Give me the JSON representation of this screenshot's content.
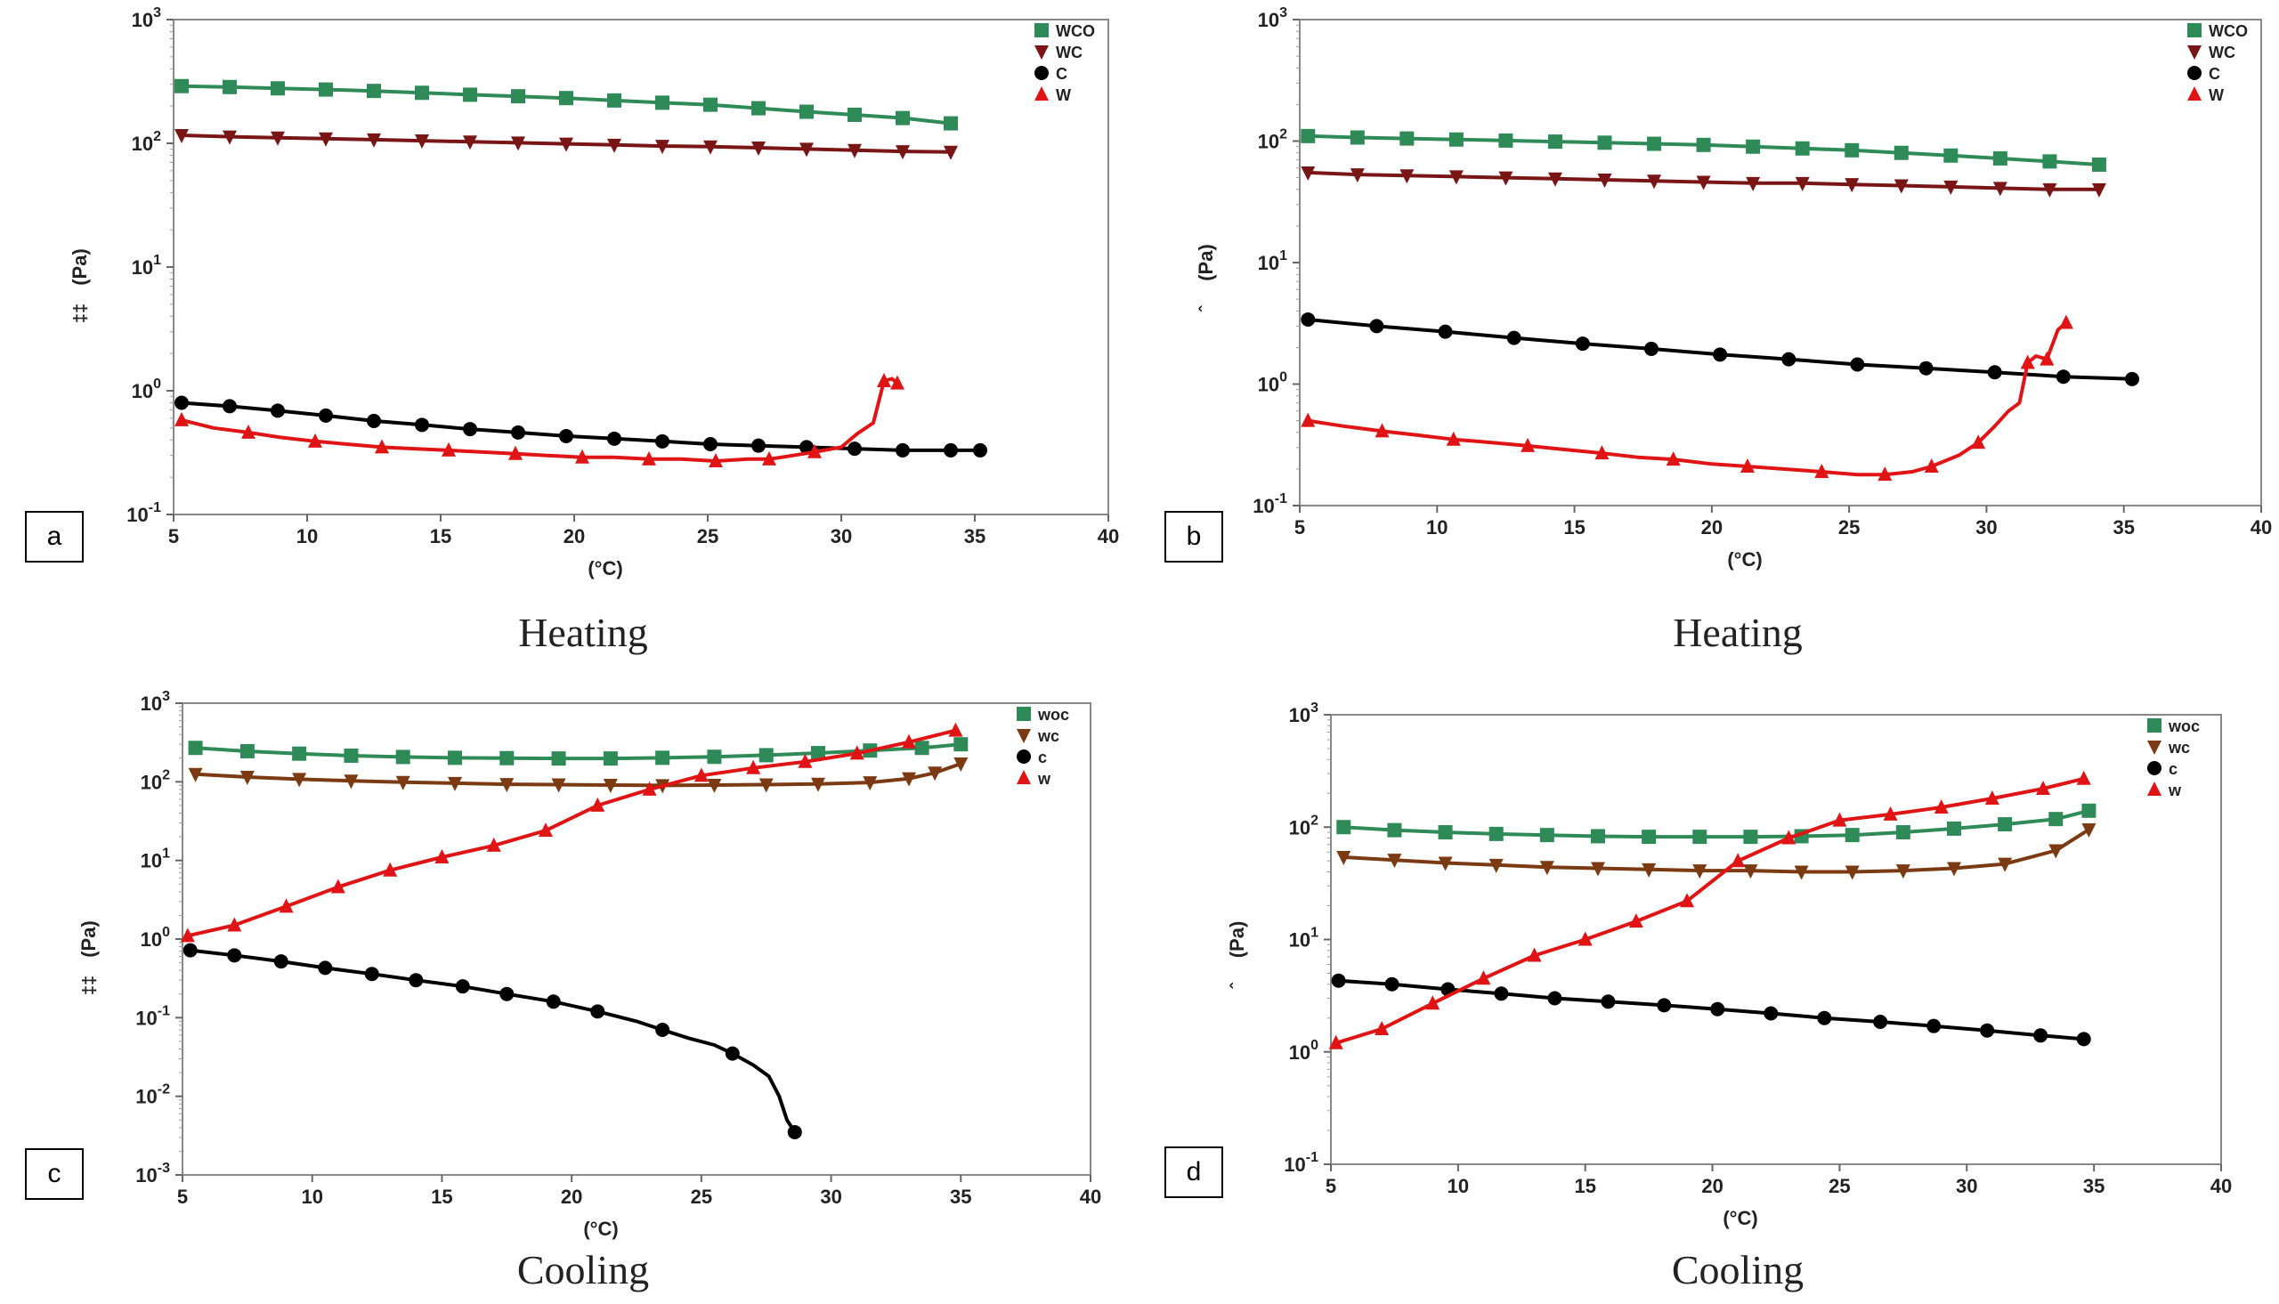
{
  "captions": [
    "Heating",
    "Heating",
    "Cooling",
    "Cooling"
  ],
  "colors": {
    "wco": "#2e8b57",
    "wc": "#7a1515",
    "wc_cool": "#7b3a12",
    "c": "#000000",
    "w": "#e01414"
  },
  "chart_data": [
    {
      "type": "line",
      "panel_label": "a",
      "title": "",
      "xlabel": "(°C)",
      "ylabel": "(Pa)",
      "ylabel_prefix": "‡‡",
      "yscale": "log",
      "xlim": [
        5,
        40
      ],
      "ylim_exp": [
        -1,
        3
      ],
      "x_ticks": [
        "5",
        "10",
        "15",
        "20",
        "25",
        "30",
        "35",
        "40"
      ],
      "legend_position": "top-right",
      "series": [
        {
          "name": "WCO",
          "marker": "square",
          "color": "#2e8b57",
          "x": [
            5.3,
            7.1,
            8.9,
            10.7,
            12.5,
            14.3,
            16.1,
            17.9,
            19.7,
            21.5,
            23.3,
            25.1,
            26.9,
            28.7,
            30.5,
            32.3,
            34.1
          ],
          "y": [
            290,
            285,
            278,
            272,
            265,
            256,
            247,
            240,
            232,
            222,
            213,
            205,
            192,
            180,
            170,
            160,
            145
          ]
        },
        {
          "name": "WC",
          "marker": "triangle-down",
          "color": "#7a1515",
          "x": [
            5.3,
            7.1,
            8.9,
            10.7,
            12.5,
            14.3,
            16.1,
            17.9,
            19.7,
            21.5,
            23.3,
            25.1,
            26.9,
            28.7,
            30.5,
            32.3,
            34.1
          ],
          "y": [
            116,
            113,
            111,
            109,
            107,
            105,
            103,
            101,
            99,
            97,
            95,
            94,
            92,
            90,
            88,
            86,
            85
          ]
        },
        {
          "name": "C",
          "marker": "circle",
          "color": "#000000",
          "x": [
            5.3,
            7.1,
            8.9,
            10.7,
            12.5,
            14.3,
            16.1,
            17.9,
            19.7,
            21.5,
            23.3,
            25.1,
            26.9,
            28.7,
            30.5,
            32.3,
            34.1,
            35.2
          ],
          "y": [
            0.8,
            0.75,
            0.69,
            0.63,
            0.57,
            0.53,
            0.49,
            0.46,
            0.43,
            0.41,
            0.39,
            0.37,
            0.36,
            0.35,
            0.34,
            0.33,
            0.33,
            0.33
          ]
        },
        {
          "name": "W",
          "marker": "triangle-up",
          "color": "#e01414",
          "x": [
            5.3,
            6.5,
            7.8,
            9.0,
            10.3,
            11.5,
            12.8,
            14.0,
            15.3,
            16.5,
            17.8,
            19.0,
            20.3,
            21.5,
            22.8,
            24.0,
            25.3,
            26.5,
            27.3,
            28.2,
            29.0,
            30.0,
            30.6,
            31.2,
            31.6,
            31.9,
            32.1
          ],
          "y": [
            0.58,
            0.5,
            0.46,
            0.42,
            0.39,
            0.37,
            0.35,
            0.34,
            0.33,
            0.32,
            0.31,
            0.3,
            0.29,
            0.29,
            0.28,
            0.28,
            0.27,
            0.28,
            0.28,
            0.3,
            0.32,
            0.35,
            0.45,
            0.55,
            1.2,
            1.25,
            1.15
          ],
          "markers_at": [
            0,
            2,
            4,
            6,
            8,
            10,
            12,
            14,
            16,
            18,
            20,
            24,
            26
          ]
        }
      ]
    },
    {
      "type": "line",
      "panel_label": "b",
      "title": "",
      "xlabel": "(°C)",
      "ylabel": "(Pa)",
      "ylabel_prefix": "ˆ",
      "yscale": "log",
      "xlim": [
        5,
        40
      ],
      "ylim_exp": [
        -1,
        3
      ],
      "x_ticks": [
        "5",
        "10",
        "15",
        "20",
        "25",
        "30",
        "35",
        "40"
      ],
      "legend_position": "top-right",
      "series": [
        {
          "name": "WCO",
          "marker": "square",
          "color": "#2e8b57",
          "x": [
            5.3,
            7.1,
            8.9,
            10.7,
            12.5,
            14.3,
            16.1,
            17.9,
            19.7,
            21.5,
            23.3,
            25.1,
            26.9,
            28.7,
            30.5,
            32.3,
            34.1
          ],
          "y": [
            110,
            107,
            105,
            103,
            101,
            99,
            97,
            95,
            93,
            90,
            87,
            84,
            80,
            76,
            72,
            68,
            64
          ]
        },
        {
          "name": "WC",
          "marker": "triangle-down",
          "color": "#7a1515",
          "x": [
            5.3,
            7.1,
            8.9,
            10.7,
            12.5,
            14.3,
            16.1,
            17.9,
            19.7,
            21.5,
            23.3,
            25.1,
            26.9,
            28.7,
            30.5,
            32.3,
            34.1
          ],
          "y": [
            55,
            53,
            52,
            51,
            50,
            49,
            48,
            47,
            46,
            45,
            45,
            44,
            43,
            42,
            41,
            40,
            40
          ]
        },
        {
          "name": "C",
          "marker": "circle",
          "color": "#000000",
          "x": [
            5.3,
            7.8,
            10.3,
            12.8,
            15.3,
            17.8,
            20.3,
            22.8,
            25.3,
            27.8,
            30.3,
            32.8,
            35.3
          ],
          "y": [
            3.4,
            3.0,
            2.7,
            2.4,
            2.15,
            1.95,
            1.75,
            1.6,
            1.45,
            1.35,
            1.25,
            1.15,
            1.1
          ]
        },
        {
          "name": "W",
          "marker": "triangle-up",
          "color": "#e01414",
          "x": [
            5.3,
            6.6,
            8.0,
            9.3,
            10.6,
            12.0,
            13.3,
            14.6,
            16.0,
            17.3,
            18.6,
            20.0,
            21.3,
            22.6,
            24.0,
            25.3,
            26.3,
            27.3,
            28.0,
            29.0,
            29.7,
            30.3,
            30.8,
            31.2,
            31.5,
            31.8,
            32.2,
            32.6,
            32.9
          ],
          "y": [
            0.5,
            0.45,
            0.41,
            0.38,
            0.35,
            0.33,
            0.31,
            0.29,
            0.27,
            0.25,
            0.24,
            0.22,
            0.21,
            0.2,
            0.19,
            0.18,
            0.18,
            0.19,
            0.21,
            0.26,
            0.33,
            0.45,
            0.6,
            0.7,
            1.5,
            1.7,
            1.6,
            2.8,
            3.2
          ],
          "markers_at": [
            0,
            2,
            4,
            6,
            8,
            10,
            12,
            14,
            16,
            18,
            20,
            24,
            26,
            28
          ]
        }
      ]
    },
    {
      "type": "line",
      "panel_label": "c",
      "title": "",
      "xlabel": "(°C)",
      "ylabel": "(Pa)",
      "ylabel_prefix": "‡‡",
      "yscale": "log",
      "xlim": [
        5,
        40
      ],
      "ylim_exp": [
        -3,
        3
      ],
      "x_ticks": [
        "5",
        "10",
        "15",
        "20",
        "25",
        "30",
        "35",
        "40"
      ],
      "legend_position": "top-right",
      "series": [
        {
          "name": "woc",
          "marker": "square",
          "color": "#2e8b57",
          "x": [
            5.5,
            7.5,
            9.5,
            11.5,
            13.5,
            15.5,
            17.5,
            19.5,
            21.5,
            23.5,
            25.5,
            27.5,
            29.5,
            31.5,
            33.5,
            35.0
          ],
          "y": [
            270,
            245,
            228,
            215,
            207,
            202,
            200,
            198,
            198,
            202,
            208,
            218,
            232,
            250,
            270,
            300
          ]
        },
        {
          "name": "wc",
          "marker": "triangle-down",
          "color": "#7b3a12",
          "x": [
            5.5,
            7.5,
            9.5,
            11.5,
            13.5,
            15.5,
            17.5,
            19.5,
            21.5,
            23.5,
            25.5,
            27.5,
            29.5,
            31.5,
            33.0,
            34.0,
            35.0
          ],
          "y": [
            125,
            115,
            108,
            103,
            99,
            96,
            93,
            92,
            91,
            90,
            91,
            92,
            94,
            98,
            110,
            130,
            170
          ]
        },
        {
          "name": "c",
          "marker": "circle",
          "color": "#000000",
          "x": [
            5.3,
            7.0,
            8.8,
            10.5,
            12.3,
            14.0,
            15.8,
            17.5,
            19.3,
            21.0,
            22.5,
            23.5,
            24.5,
            25.5,
            26.2,
            27.0,
            27.6,
            28.0,
            28.3,
            28.6
          ],
          "y": [
            0.72,
            0.62,
            0.52,
            0.43,
            0.36,
            0.3,
            0.25,
            0.2,
            0.16,
            0.12,
            0.09,
            0.07,
            0.055,
            0.045,
            0.035,
            0.025,
            0.018,
            0.01,
            0.005,
            0.0035
          ],
          "markers_at": [
            0,
            1,
            2,
            3,
            4,
            5,
            6,
            7,
            8,
            9,
            11,
            14,
            19
          ]
        },
        {
          "name": "w",
          "marker": "triangle-up",
          "color": "#e01414",
          "x": [
            5.2,
            7.0,
            9.0,
            11.0,
            13.0,
            15.0,
            17.0,
            19.0,
            21.0,
            23.0,
            25.0,
            27.0,
            29.0,
            31.0,
            33.0,
            34.8
          ],
          "y": [
            1.1,
            1.5,
            2.6,
            4.6,
            7.5,
            11,
            15.5,
            24,
            50,
            80,
            120,
            150,
            180,
            230,
            320,
            450
          ]
        }
      ]
    },
    {
      "type": "line",
      "panel_label": "d",
      "title": "",
      "xlabel": "(°C)",
      "ylabel": "(Pa)",
      "ylabel_prefix": "ˆ",
      "yscale": "log",
      "xlim": [
        5,
        40
      ],
      "ylim_exp": [
        -1,
        3
      ],
      "x_ticks": [
        "5",
        "10",
        "15",
        "20",
        "25",
        "30",
        "35",
        "40"
      ],
      "legend_position": "top-right",
      "series": [
        {
          "name": "woc",
          "marker": "square",
          "color": "#2e8b57",
          "x": [
            5.5,
            7.5,
            9.5,
            11.5,
            13.5,
            15.5,
            17.5,
            19.5,
            21.5,
            23.5,
            25.5,
            27.5,
            29.5,
            31.5,
            33.5,
            34.8
          ],
          "y": [
            100,
            94,
            90,
            87,
            85,
            83,
            82,
            82,
            82,
            83,
            85,
            90,
            97,
            106,
            118,
            140
          ]
        },
        {
          "name": "wc",
          "marker": "triangle-down",
          "color": "#7b3a12",
          "x": [
            5.5,
            7.5,
            9.5,
            11.5,
            13.5,
            15.5,
            17.5,
            19.5,
            21.5,
            23.5,
            25.5,
            27.5,
            29.5,
            31.5,
            33.5,
            34.8
          ],
          "y": [
            54,
            51,
            48,
            46,
            44,
            43,
            42,
            41,
            41,
            40,
            40,
            41,
            43,
            47,
            62,
            95
          ]
        },
        {
          "name": "c",
          "marker": "circle",
          "color": "#000000",
          "x": [
            5.3,
            7.4,
            9.6,
            11.7,
            13.8,
            15.9,
            18.1,
            20.2,
            22.3,
            24.4,
            26.6,
            28.7,
            30.8,
            32.9,
            34.6
          ],
          "y": [
            4.3,
            4.0,
            3.6,
            3.3,
            3.0,
            2.8,
            2.6,
            2.4,
            2.2,
            2.0,
            1.85,
            1.7,
            1.55,
            1.4,
            1.3
          ]
        },
        {
          "name": "w",
          "marker": "triangle-up",
          "color": "#e01414",
          "x": [
            5.2,
            7.0,
            9.0,
            11.0,
            13.0,
            15.0,
            17.0,
            19.0,
            21.0,
            23.0,
            25.0,
            27.0,
            29.0,
            31.0,
            33.0,
            34.6
          ],
          "y": [
            1.2,
            1.6,
            2.7,
            4.5,
            7.2,
            10,
            14.5,
            22,
            50,
            80,
            115,
            130,
            150,
            180,
            220,
            270
          ]
        }
      ]
    }
  ]
}
